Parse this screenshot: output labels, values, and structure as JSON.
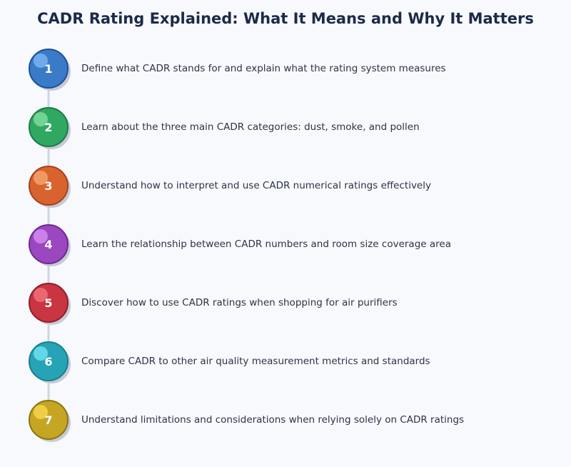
{
  "title": "CADR Rating Explained: What It Means and Why It Matters",
  "steps": [
    {
      "number": "1",
      "text": "Define what CADR stands for and explain what the rating system measures",
      "color": "#3a7bc8",
      "border": "#1f4f99",
      "highlight": "#7bb3f2"
    },
    {
      "number": "2",
      "text": "Learn about the three main CADR categories: dust, smoke, and pollen",
      "color": "#2fa862",
      "border": "#1d7a44",
      "highlight": "#7ddc9f"
    },
    {
      "number": "3",
      "text": "Understand how to interpret and use CADR numerical ratings effectively",
      "color": "#d9632e",
      "border": "#a5411b",
      "highlight": "#f5a26f"
    },
    {
      "number": "4",
      "text": "Learn the relationship between CADR numbers and room size coverage area",
      "color": "#9b47c0",
      "border": "#6e2a91",
      "highlight": "#d48af0"
    },
    {
      "number": "5",
      "text": "Discover how to use CADR ratings when shopping for air purifiers",
      "color": "#c93540",
      "border": "#8f1f28",
      "highlight": "#f07078"
    },
    {
      "number": "6",
      "text": "Compare CADR to other air quality measurement metrics and standards",
      "color": "#26a4b5",
      "border": "#17808e",
      "highlight": "#6de0ee"
    },
    {
      "number": "7",
      "text": "Understand limitations and considerations when relying solely on CADR ratings",
      "color": "#c6a523",
      "border": "#8c7414",
      "highlight": "#f5d54e"
    }
  ]
}
